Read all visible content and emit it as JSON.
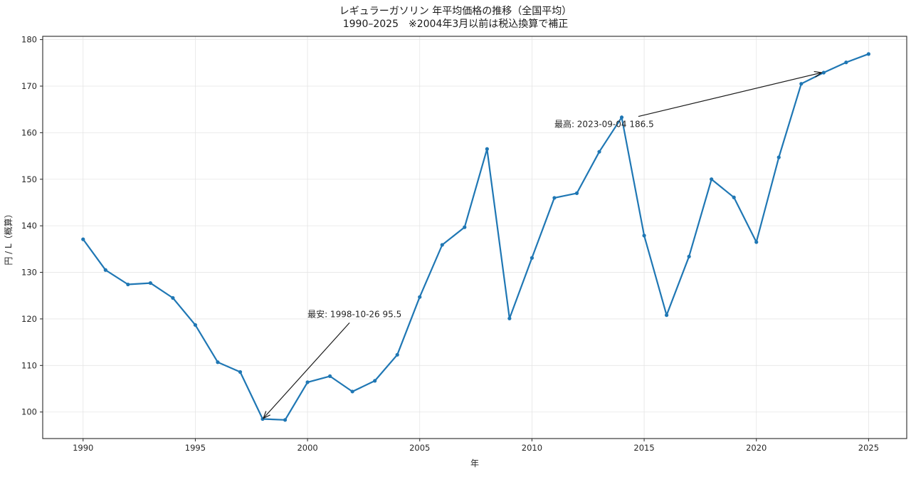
{
  "chart_data": {
    "type": "line",
    "title": "レギュラーガソリン 年平均価格の推移（全国平均）",
    "subtitle": "1990–2025　※2004年3月以前は税込換算で補正",
    "xlabel": "年",
    "ylabel": "円 / L（概算）",
    "xlim": [
      1988.2,
      2026.7
    ],
    "ylim": [
      94.3,
      180.7
    ],
    "x_ticks": [
      1990,
      1995,
      2000,
      2005,
      2010,
      2015,
      2020,
      2025
    ],
    "y_ticks": [
      100,
      110,
      120,
      130,
      140,
      150,
      160,
      170,
      180
    ],
    "grid": true,
    "legend": null,
    "x": [
      1990,
      1991,
      1992,
      1993,
      1994,
      1995,
      1996,
      1997,
      1998,
      1999,
      2000,
      2001,
      2002,
      2003,
      2004,
      2005,
      2006,
      2007,
      2008,
      2009,
      2010,
      2011,
      2012,
      2013,
      2014,
      2015,
      2016,
      2017,
      2018,
      2019,
      2020,
      2021,
      2022,
      2023,
      2024,
      2025
    ],
    "series": [
      {
        "name": "レギュラーガソリン年平均",
        "color": "#1f77b4",
        "values": [
          137.1,
          130.5,
          127.4,
          127.7,
          124.5,
          118.7,
          110.7,
          108.6,
          98.5,
          98.3,
          106.4,
          107.7,
          104.4,
          106.7,
          112.3,
          124.7,
          135.9,
          139.7,
          156.5,
          120.1,
          133.1,
          146.0,
          147.0,
          155.9,
          163.3,
          137.9,
          120.8,
          133.4,
          150.0,
          146.1,
          136.5,
          154.7,
          170.5,
          172.9,
          175.1,
          176.9
        ]
      }
    ],
    "annotations": [
      {
        "id": "min",
        "text": "最安: 1998-10-26 95.5",
        "text_xy": [
          2000.0,
          121.0
        ],
        "arrow_to": [
          1998.0,
          98.5
        ]
      },
      {
        "id": "max",
        "text": "最高: 2023-09-04 186.5",
        "text_xy": [
          2011.0,
          161.8
        ],
        "arrow_to": [
          2023.0,
          172.9
        ]
      }
    ]
  },
  "colors": {
    "line": "#1f77b4",
    "grid": "#e5e5e5",
    "axis": "#262626",
    "arrow": "#1a1a1a"
  }
}
